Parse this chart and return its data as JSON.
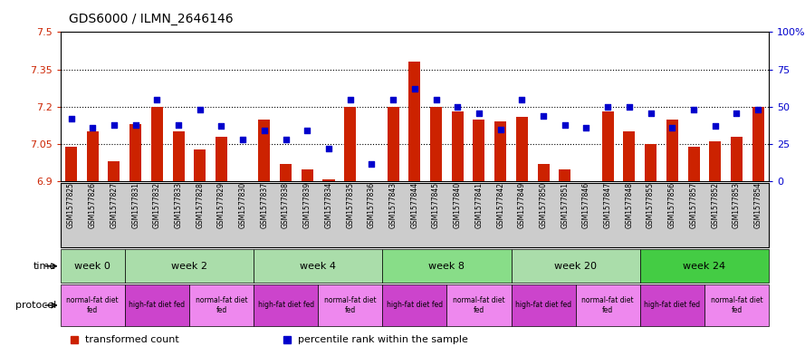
{
  "title": "GDS6000 / ILMN_2646146",
  "samples": [
    "GSM1577825",
    "GSM1577826",
    "GSM1577827",
    "GSM1577831",
    "GSM1577832",
    "GSM1577833",
    "GSM1577828",
    "GSM1577829",
    "GSM1577830",
    "GSM1577837",
    "GSM1577838",
    "GSM1577839",
    "GSM1577834",
    "GSM1577835",
    "GSM1577836",
    "GSM1577843",
    "GSM1577844",
    "GSM1577845",
    "GSM1577840",
    "GSM1577841",
    "GSM1577842",
    "GSM1577849",
    "GSM1577850",
    "GSM1577851",
    "GSM1577846",
    "GSM1577847",
    "GSM1577848",
    "GSM1577855",
    "GSM1577856",
    "GSM1577857",
    "GSM1577852",
    "GSM1577853",
    "GSM1577854"
  ],
  "red_values": [
    7.04,
    7.1,
    6.98,
    7.13,
    7.2,
    7.1,
    7.03,
    7.08,
    6.9,
    7.15,
    6.97,
    6.95,
    6.91,
    7.2,
    6.9,
    7.2,
    7.38,
    7.2,
    7.18,
    7.15,
    7.14,
    7.16,
    6.97,
    6.95,
    6.9,
    7.18,
    7.1,
    7.05,
    7.15,
    7.04,
    7.06,
    7.08,
    7.2
  ],
  "blue_values": [
    42,
    36,
    38,
    38,
    55,
    38,
    48,
    37,
    28,
    34,
    28,
    34,
    22,
    55,
    12,
    55,
    62,
    55,
    50,
    46,
    35,
    55,
    44,
    38,
    36,
    50,
    50,
    46,
    36,
    48,
    37,
    46,
    48
  ],
  "ylim_left": [
    6.9,
    7.5
  ],
  "ylim_right": [
    0,
    100
  ],
  "yticks_left": [
    6.9,
    7.05,
    7.2,
    7.35,
    7.5
  ],
  "yticks_right": [
    0,
    25,
    50,
    75,
    100
  ],
  "ytick_labels_left": [
    "6.9",
    "7.05",
    "7.2",
    "7.35",
    "7.5"
  ],
  "ytick_labels_right": [
    "0",
    "25",
    "50",
    "75",
    "100%"
  ],
  "hlines": [
    7.05,
    7.2,
    7.35
  ],
  "time_groups": [
    {
      "label": "week 0",
      "start": 0,
      "end": 2,
      "color": "#aaddaa"
    },
    {
      "label": "week 2",
      "start": 3,
      "end": 8,
      "color": "#aaddaa"
    },
    {
      "label": "week 4",
      "start": 9,
      "end": 14,
      "color": "#aaddaa"
    },
    {
      "label": "week 8",
      "start": 15,
      "end": 20,
      "color": "#88dd88"
    },
    {
      "label": "week 20",
      "start": 21,
      "end": 26,
      "color": "#aaddaa"
    },
    {
      "label": "week 24",
      "start": 27,
      "end": 32,
      "color": "#44cc44"
    }
  ],
  "protocol_groups": [
    {
      "label": "normal-fat diet\nfed",
      "start": 0,
      "end": 2,
      "color": "#ee88ee"
    },
    {
      "label": "high-fat diet fed",
      "start": 3,
      "end": 5,
      "color": "#cc44cc"
    },
    {
      "label": "normal-fat diet\nfed",
      "start": 6,
      "end": 8,
      "color": "#ee88ee"
    },
    {
      "label": "high-fat diet fed",
      "start": 9,
      "end": 11,
      "color": "#cc44cc"
    },
    {
      "label": "normal-fat diet\nfed",
      "start": 12,
      "end": 14,
      "color": "#ee88ee"
    },
    {
      "label": "high-fat diet fed",
      "start": 15,
      "end": 17,
      "color": "#cc44cc"
    },
    {
      "label": "normal-fat diet\nfed",
      "start": 18,
      "end": 20,
      "color": "#ee88ee"
    },
    {
      "label": "high-fat diet fed",
      "start": 21,
      "end": 23,
      "color": "#cc44cc"
    },
    {
      "label": "normal-fat diet\nfed",
      "start": 24,
      "end": 26,
      "color": "#ee88ee"
    },
    {
      "label": "high-fat diet fed",
      "start": 27,
      "end": 29,
      "color": "#cc44cc"
    },
    {
      "label": "normal-fat diet\nfed",
      "start": 30,
      "end": 32,
      "color": "#ee88ee"
    }
  ],
  "bar_color": "#cc2200",
  "scatter_color": "#0000cc",
  "bg_color": "#ffffff",
  "xtick_bg_color": "#cccccc",
  "axis_label_color_left": "#cc2200",
  "axis_label_color_right": "#0000cc",
  "bar_width": 0.55,
  "legend_items": [
    {
      "label": "transformed count",
      "color": "#cc2200"
    },
    {
      "label": "percentile rank within the sample",
      "color": "#0000cc"
    }
  ],
  "time_row_label": "time",
  "protocol_row_label": "protocol"
}
